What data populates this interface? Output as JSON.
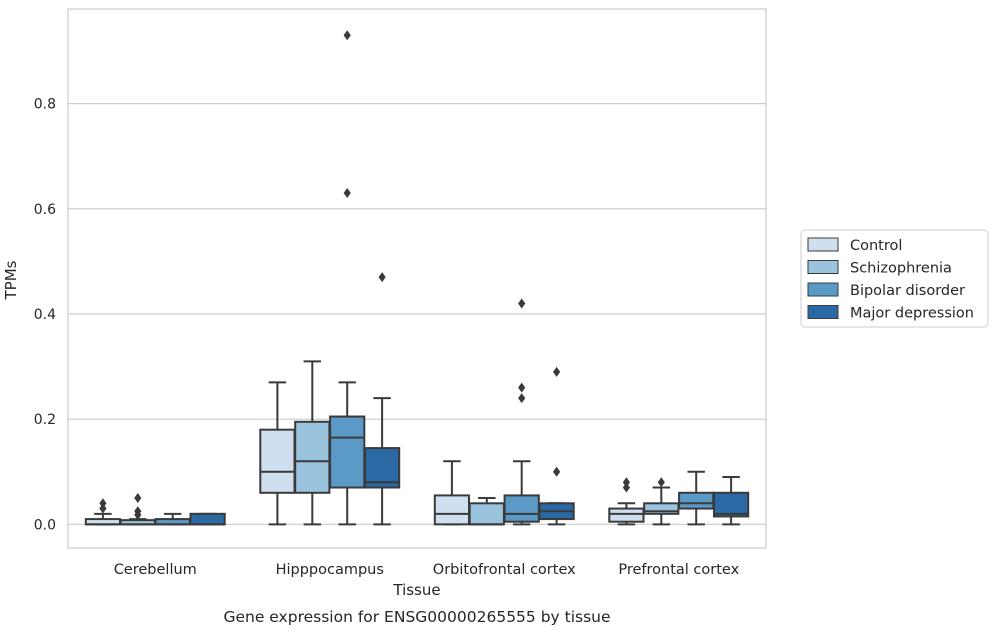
{
  "chart_data": {
    "type": "box",
    "title": "Gene expression for ENSG00000265555 by tissue",
    "xlabel": "Tissue",
    "ylabel": "TPMs",
    "ylim": [
      -0.045,
      0.98
    ],
    "yticks": [
      0.0,
      0.2,
      0.4,
      0.6,
      0.8
    ],
    "ytick_labels": [
      "0.0",
      "0.2",
      "0.4",
      "0.6",
      "0.8"
    ],
    "grid": "horizontal",
    "legend_position": "right",
    "categories": [
      "Cerebellum",
      "Hipppocampus",
      "Orbitofrontal cortex",
      "Prefrontal cortex"
    ],
    "series": [
      {
        "name": "Control",
        "color": "#cfdff0",
        "boxes": [
          {
            "whislo": 0.0,
            "q1": 0.0,
            "med": 0.0,
            "q3": 0.01,
            "whishi": 0.02,
            "fliers": [
              0.03,
              0.04
            ]
          },
          {
            "whislo": 0.0,
            "q1": 0.06,
            "med": 0.1,
            "q3": 0.18,
            "whishi": 0.27,
            "fliers": []
          },
          {
            "whislo": 0.0,
            "q1": 0.0,
            "med": 0.02,
            "q3": 0.055,
            "whishi": 0.12,
            "fliers": []
          },
          {
            "whislo": 0.0,
            "q1": 0.005,
            "med": 0.02,
            "q3": 0.03,
            "whishi": 0.04,
            "fliers": [
              0.07,
              0.08
            ]
          }
        ]
      },
      {
        "name": "Schizophrenia",
        "color": "#9ac3dd",
        "boxes": [
          {
            "whislo": 0.0,
            "q1": 0.0,
            "med": 0.0,
            "q3": 0.008,
            "whishi": 0.01,
            "fliers": [
              0.018,
              0.025,
              0.05
            ]
          },
          {
            "whislo": 0.0,
            "q1": 0.06,
            "med": 0.12,
            "q3": 0.195,
            "whishi": 0.31,
            "fliers": []
          },
          {
            "whislo": 0.0,
            "q1": 0.0,
            "med": 0.0,
            "q3": 0.04,
            "whishi": 0.05,
            "fliers": []
          },
          {
            "whislo": 0.0,
            "q1": 0.02,
            "med": 0.025,
            "q3": 0.04,
            "whishi": 0.07,
            "fliers": [
              0.08
            ]
          }
        ]
      },
      {
        "name": "Bipolar disorder",
        "color": "#5b9ac7",
        "boxes": [
          {
            "whislo": 0.0,
            "q1": 0.0,
            "med": 0.0,
            "q3": 0.01,
            "whishi": 0.02,
            "fliers": []
          },
          {
            "whislo": 0.0,
            "q1": 0.07,
            "med": 0.165,
            "q3": 0.205,
            "whishi": 0.27,
            "fliers": [
              0.63,
              0.93
            ]
          },
          {
            "whislo": 0.0,
            "q1": 0.005,
            "med": 0.02,
            "q3": 0.055,
            "whishi": 0.12,
            "fliers": [
              0.24,
              0.26,
              0.42
            ]
          },
          {
            "whislo": 0.0,
            "q1": 0.03,
            "med": 0.04,
            "q3": 0.06,
            "whishi": 0.1,
            "fliers": []
          }
        ]
      },
      {
        "name": "Major depression",
        "color": "#2b69a5",
        "boxes": [
          {
            "whislo": 0.0,
            "q1": 0.0,
            "med": 0.0,
            "q3": 0.02,
            "whishi": 0.02,
            "fliers": []
          },
          {
            "whislo": 0.0,
            "q1": 0.07,
            "med": 0.08,
            "q3": 0.145,
            "whishi": 0.24,
            "fliers": [
              0.47
            ]
          },
          {
            "whislo": 0.0,
            "q1": 0.01,
            "med": 0.025,
            "q3": 0.04,
            "whishi": 0.04,
            "fliers": [
              0.1,
              0.29
            ]
          },
          {
            "whislo": 0.0,
            "q1": 0.015,
            "med": 0.02,
            "q3": 0.06,
            "whishi": 0.09,
            "fliers": []
          }
        ]
      }
    ]
  }
}
